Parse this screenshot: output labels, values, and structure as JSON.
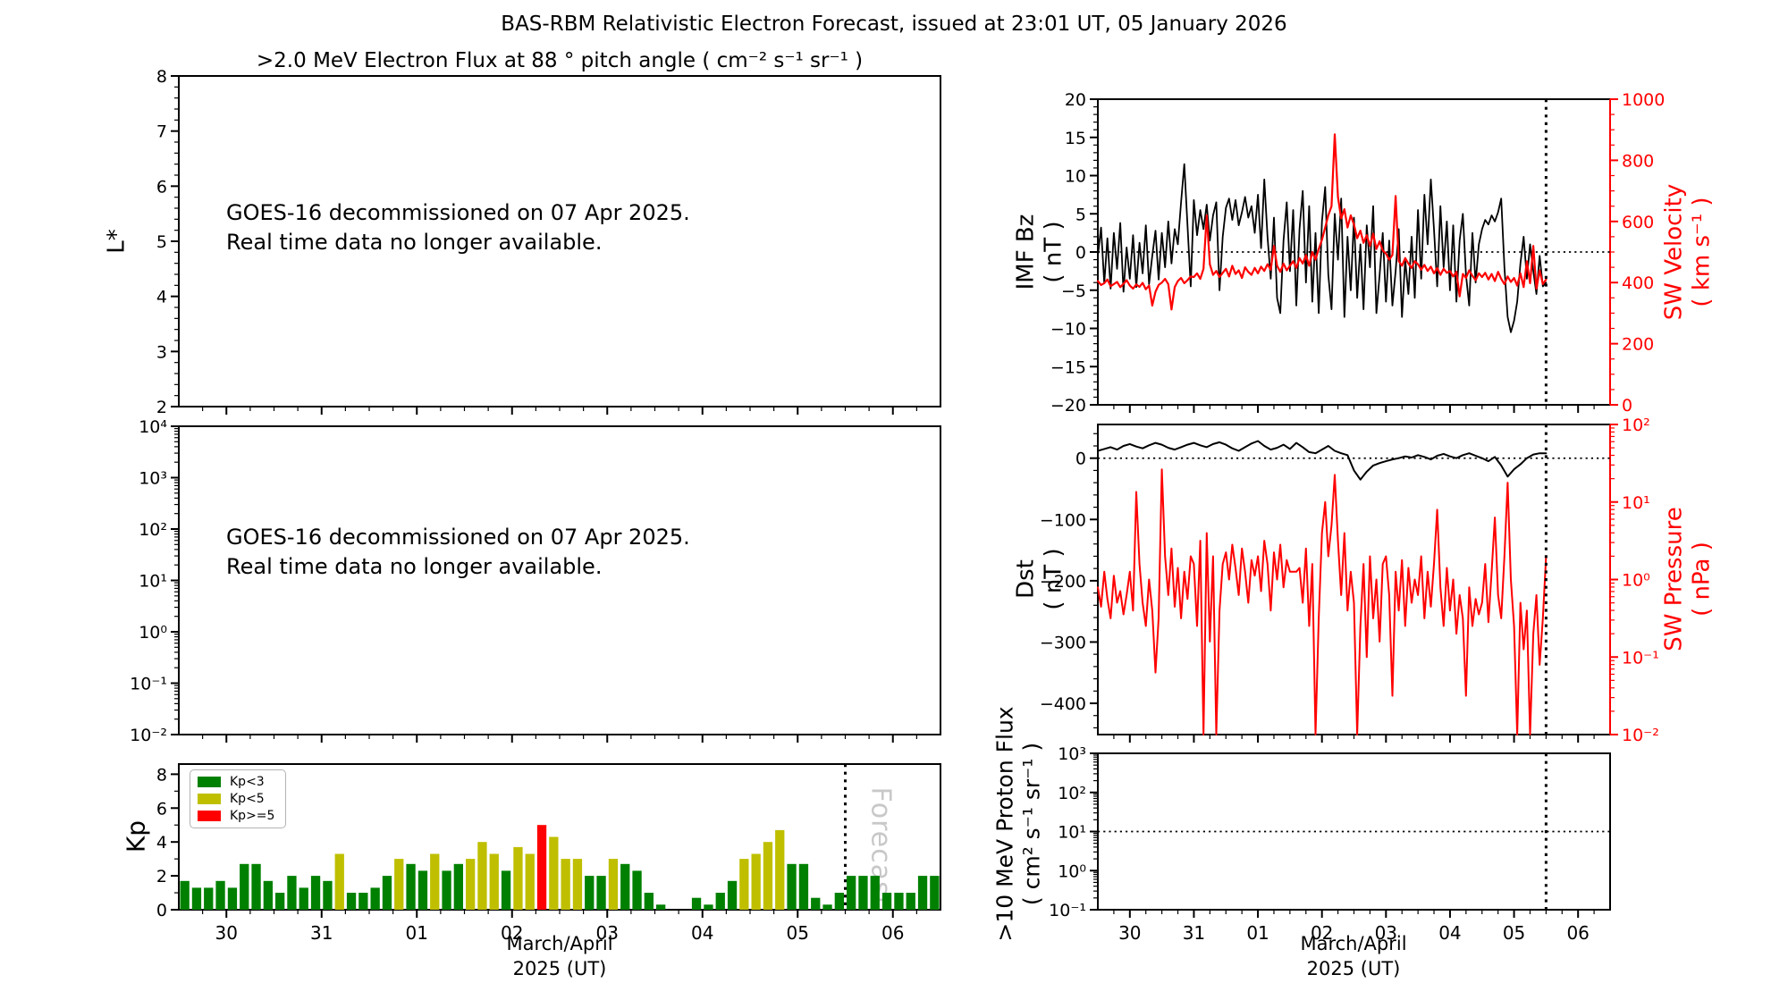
{
  "chart_data": {
    "type": "multi-panel-timeseries",
    "title": "BAS-RBM Relativistic Electron Forecast, issued at 23:01 UT, 05 January 2026",
    "colors": {
      "line_black": "#000000",
      "line_red": "#ff0000",
      "kp_green": "#008000",
      "kp_olive": "#bfbf00",
      "kp_red": "#ff0000",
      "forecast_gray": "#c8c8c8"
    },
    "xaxis": {
      "label_line1": "March/April",
      "label_line2": "2025 (UT)",
      "tick_labels": [
        "30",
        "31",
        "01",
        "02",
        "03",
        "04",
        "05",
        "06"
      ],
      "tick_positions_days": [
        0.5,
        1.5,
        2.5,
        3.5,
        4.5,
        5.5,
        6.5,
        7.5
      ],
      "range_days": [
        0,
        8
      ],
      "minor_step_days": 0.25,
      "forecast_line_day": 7.0
    },
    "goes_notice": {
      "line1": "GOES-16 decommissioned on 07 Apr 2025.",
      "line2": "Real time data no longer available."
    },
    "panels": {
      "electron_flux_L": {
        "subtitle": ">2.0 MeV Electron Flux at 88 ° pitch angle ( cm⁻² s⁻¹ sr⁻¹ )",
        "ylabel": "L*",
        "ylim": [
          2,
          8
        ],
        "yticks": [
          {
            "v": 8,
            "label": "8"
          },
          {
            "v": 7,
            "label": "7"
          },
          {
            "v": 6,
            "label": "6"
          },
          {
            "v": 5,
            "label": "5"
          },
          {
            "v": 4,
            "label": "4"
          },
          {
            "v": 3,
            "label": "3"
          },
          {
            "v": 2,
            "label": "2"
          }
        ],
        "minor_step": 0.2,
        "data": "none"
      },
      "electron_flux_log": {
        "ylim_exp": [
          -2,
          4
        ],
        "yticks": [
          {
            "e": 4,
            "label": "10⁴"
          },
          {
            "e": 3,
            "label": "10³"
          },
          {
            "e": 2,
            "label": "10²"
          },
          {
            "e": 1,
            "label": "10¹"
          },
          {
            "e": 0,
            "label": "10⁰"
          },
          {
            "e": -1,
            "label": "10⁻¹"
          },
          {
            "e": -2,
            "label": "10⁻²"
          }
        ],
        "data": "none"
      },
      "kp": {
        "ylabel": "Kp",
        "ylim": [
          0,
          8.6
        ],
        "yticks": [
          {
            "v": 0,
            "label": "0"
          },
          {
            "v": 2,
            "label": "2"
          },
          {
            "v": 4,
            "label": "4"
          },
          {
            "v": 6,
            "label": "6"
          },
          {
            "v": 8,
            "label": "8"
          }
        ],
        "legend": [
          {
            "label": "Kp<3",
            "color": "#008000"
          },
          {
            "label": "Kp<5",
            "color": "#bfbf00"
          },
          {
            "label": "Kp>=5",
            "color": "#ff0000"
          }
        ],
        "forecast_label": "Forecast",
        "bars": {
          "start_day": 0,
          "slot_days": 0.125,
          "color_rule": "green if Kp<3, olive if 3<=Kp<5, red if Kp>=5",
          "values": [
            1.7,
            1.3,
            1.3,
            1.7,
            1.3,
            2.7,
            2.7,
            1.7,
            1.0,
            2.0,
            1.3,
            2.0,
            1.7,
            3.3,
            1.0,
            1.0,
            1.3,
            2.0,
            3.0,
            2.7,
            2.3,
            3.3,
            2.3,
            2.7,
            3.0,
            4.0,
            3.3,
            2.3,
            3.7,
            3.3,
            5.0,
            4.3,
            3.0,
            3.0,
            2.0,
            2.0,
            3.0,
            2.7,
            2.3,
            1.0,
            0.3,
            0,
            0,
            0.7,
            0.3,
            1.0,
            1.7,
            3.0,
            3.3,
            4.0,
            4.7,
            2.7,
            2.7,
            0.7,
            0.3,
            1.0,
            2.0,
            2.0,
            2.0,
            1.0,
            1.0,
            1.0,
            2.0,
            2.0
          ]
        }
      },
      "imf_sw": {
        "ylabel_left_1": "IMF Bz",
        "ylabel_left_2": "( nT )",
        "ylim_left": [
          -20,
          20
        ],
        "yticks_left": [
          {
            "v": 20,
            "label": "20"
          },
          {
            "v": 15,
            "label": "15"
          },
          {
            "v": 10,
            "label": "10"
          },
          {
            "v": 5,
            "label": "5"
          },
          {
            "v": 0,
            "label": "0"
          },
          {
            "v": -5,
            "label": "−5"
          },
          {
            "v": -10,
            "label": "−10"
          },
          {
            "v": -15,
            "label": "−15"
          },
          {
            "v": -20,
            "label": "−20"
          }
        ],
        "hline_left": 0,
        "ylabel_right_1": "SW Velocity",
        "ylabel_right_2": "( km s⁻¹ )",
        "ylim_right": [
          0,
          1000
        ],
        "yticks_right": [
          {
            "v": 1000,
            "label": "1000"
          },
          {
            "v": 800,
            "label": "800"
          },
          {
            "v": 600,
            "label": "600"
          },
          {
            "v": 400,
            "label": "400"
          },
          {
            "v": 200,
            "label": "200"
          },
          {
            "v": 0,
            "label": "0"
          }
        ],
        "series_imf_bz_nT": {
          "t0": 0,
          "dt": 0.05,
          "values": [
            -0.5,
            3.2,
            -4.1,
            1.8,
            -4.8,
            2.5,
            -2.2,
            3.8,
            -5.2,
            0.6,
            -3.5,
            2.2,
            -4.6,
            1.2,
            -2.8,
            3.5,
            -4.2,
            -0.5,
            2.8,
            -3.6,
            2.5,
            -2.0,
            4.0,
            -1.5,
            3.0,
            1.0,
            6.5,
            11.5,
            3.5,
            -4.5,
            6.8,
            2.2,
            5.5,
            3.0,
            6.2,
            1.5,
            4.8,
            6.5,
            -5.0,
            2.0,
            5.8,
            7.0,
            4.2,
            6.8,
            3.5,
            5.2,
            7.2,
            4.5,
            6.0,
            2.5,
            7.5,
            0.5,
            9.5,
            2.0,
            -3.5,
            4.5,
            -6.0,
            -8.0,
            1.5,
            6.5,
            -2.5,
            5.5,
            -7.0,
            3.0,
            8.0,
            -4.0,
            6.0,
            -6.5,
            2.5,
            -8.0,
            4.0,
            8.5,
            -3.0,
            -7.5,
            5.0,
            -1.0,
            7.0,
            -8.5,
            2.0,
            -5.0,
            4.5,
            -6.0,
            1.0,
            -7.5,
            3.5,
            -2.0,
            6.0,
            -8.0,
            -3.0,
            2.5,
            -6.5,
            1.5,
            -7.0,
            -2.5,
            3.0,
            -8.5,
            -1.0,
            -5.5,
            2.0,
            -6.0,
            5.5,
            -3.5,
            7.5,
            1.0,
            9.5,
            3.0,
            -4.5,
            6.0,
            -2.0,
            4.0,
            -5.0,
            3.5,
            -6.5,
            1.5,
            5.0,
            -3.0,
            -7.0,
            2.5,
            -4.0,
            1.0,
            3.0,
            4.2,
            3.6,
            4.8,
            4.0,
            5.2,
            7.0,
            -2.0,
            -8.5,
            -10.5,
            -9.0,
            -6.5,
            -1.5,
            2.0,
            -3.5,
            1.0,
            -2.5,
            -5.5,
            -0.5,
            -4.5,
            -4.0
          ]
        },
        "series_sw_velocity_kms": {
          "t0": 0,
          "dt": 0.05,
          "values": [
            405,
            392,
            398,
            410,
            388,
            395,
            402,
            385,
            396,
            408,
            390,
            380,
            394,
            386,
            399,
            378,
            390,
            325,
            370,
            392,
            400,
            412,
            395,
            312,
            385,
            405,
            415,
            398,
            408,
            420,
            418,
            430,
            412,
            445,
            620,
            460,
            425,
            438,
            418,
            432,
            445,
            420,
            455,
            428,
            440,
            415,
            450,
            435,
            425,
            448,
            430,
            452,
            438,
            460,
            442,
            520,
            455,
            435,
            462,
            440,
            455,
            470,
            448,
            480,
            462,
            490,
            455,
            500,
            475,
            510,
            540,
            580,
            620,
            650,
            885,
            680,
            610,
            640,
            580,
            620,
            590,
            545,
            570,
            530,
            555,
            520,
            560,
            510,
            535,
            505,
            495,
            475,
            490,
            683,
            470,
            455,
            480,
            462,
            448,
            470,
            460,
            442,
            458,
            438,
            452,
            430,
            448,
            425,
            445,
            432,
            438,
            420,
            435,
            355,
            428,
            415,
            440,
            422,
            408,
            430,
            418,
            432,
            410,
            428,
            405,
            435,
            412,
            395,
            420,
            402,
            415,
            390,
            430,
            385,
            470,
            398,
            520,
            380,
            440,
            395,
            410
          ]
        }
      },
      "dst_pressure": {
        "ylabel_left_1": "Dst",
        "ylabel_left_2": "( nT )",
        "ylim_left": [
          -451,
          55
        ],
        "yticks_left": [
          {
            "v": 0,
            "label": "0"
          },
          {
            "v": -100,
            "label": "−100"
          },
          {
            "v": -200,
            "label": "−200"
          },
          {
            "v": -300,
            "label": "−300"
          },
          {
            "v": -400,
            "label": "−400"
          }
        ],
        "hline_left": 0,
        "ylabel_right_1": "SW Pressure",
        "ylabel_right_2": "( nPa )",
        "ylim_right_exp": [
          -2,
          2
        ],
        "yticks_right": [
          {
            "e": 2,
            "label": "10²"
          },
          {
            "e": 1,
            "label": "10¹"
          },
          {
            "e": 0,
            "label": "10⁰"
          },
          {
            "e": -1,
            "label": "10⁻¹"
          },
          {
            "e": -2,
            "label": "10⁻²"
          }
        ],
        "series_dst_nT": {
          "t0": 0,
          "dt": 0.1,
          "values": [
            12,
            15,
            18,
            14,
            20,
            23,
            19,
            16,
            21,
            25,
            22,
            17,
            14,
            18,
            22,
            25,
            21,
            18,
            23,
            26,
            22,
            16,
            12,
            18,
            24,
            28,
            20,
            14,
            17,
            22,
            15,
            25,
            18,
            10,
            8,
            14,
            20,
            12,
            8,
            5,
            -20,
            -35,
            -22,
            -12,
            -8,
            -5,
            -2,
            0,
            3,
            1,
            5,
            2,
            -2,
            4,
            7,
            3,
            0,
            5,
            8,
            4,
            0,
            -5,
            2,
            -12,
            -30,
            -18,
            -10,
            0,
            6,
            8,
            8
          ]
        },
        "series_sw_pressure_log10_nPa": {
          "t0": 0,
          "dt": 0.05,
          "values": [
            -0.1,
            -0.35,
            0.1,
            -0.25,
            -0.5,
            0.05,
            -0.3,
            -0.15,
            -0.45,
            -0.2,
            0.1,
            -0.4,
            1.13,
            0.2,
            -0.3,
            -0.6,
            0.0,
            -0.4,
            -1.2,
            -0.5,
            1.42,
            0.3,
            -0.2,
            0.4,
            -0.35,
            0.15,
            -0.5,
            0.1,
            -0.25,
            0.3,
            0.2,
            -0.6,
            0.5,
            -2.0,
            0.6,
            -0.8,
            0.3,
            -2.0,
            -0.4,
            0.2,
            0.35,
            0.0,
            0.45,
            0.15,
            -0.2,
            0.4,
            0.1,
            -0.3,
            0.25,
            0.05,
            0.3,
            -0.15,
            0.5,
            0.2,
            -0.4,
            0.35,
            0.0,
            0.45,
            -0.1,
            0.25,
            0.1,
            0.1,
            0.1,
            0.15,
            -0.3,
            0.4,
            -0.6,
            0.2,
            -2.0,
            -0.5,
            0.6,
            1.0,
            0.3,
            0.7,
            1.35,
            0.5,
            -0.2,
            0.6,
            -0.4,
            0.1,
            -0.3,
            -2.0,
            -0.6,
            0.2,
            -1.0,
            0.3,
            -0.5,
            0.0,
            -0.8,
            0.2,
            0.3,
            -0.2,
            -1.5,
            0.1,
            -0.4,
            0.25,
            -0.6,
            0.15,
            -0.3,
            0.0,
            -0.2,
            0.3,
            -0.5,
            0.1,
            -0.35,
            0.2,
            0.9,
            -0.1,
            -0.6,
            0.15,
            -0.4,
            0.0,
            -0.7,
            -0.2,
            -0.5,
            -1.5,
            -0.1,
            -0.6,
            -0.25,
            -0.45,
            -0.3,
            0.2,
            -0.55,
            0.1,
            0.8,
            -0.2,
            -0.5,
            0.3,
            1.25,
            0.0,
            -0.6,
            -2.0,
            -0.3,
            -0.9,
            -0.4,
            -2.0,
            -0.7,
            -0.2,
            -1.1,
            -0.5,
            0.3
          ]
        }
      },
      "proton": {
        "ylabel_1": ">10 MeV Proton Flux",
        "ylabel_2": "( cm² s⁻¹ sr⁻¹ )",
        "ylim_exp": [
          -1,
          3
        ],
        "yticks": [
          {
            "e": 3,
            "label": "10³"
          },
          {
            "e": 2,
            "label": "10²"
          },
          {
            "e": 1,
            "label": "10¹"
          },
          {
            "e": 0,
            "label": "10⁰"
          },
          {
            "e": -1,
            "label": "10⁻¹"
          }
        ],
        "hline_exp": 1,
        "data": "none"
      }
    }
  }
}
